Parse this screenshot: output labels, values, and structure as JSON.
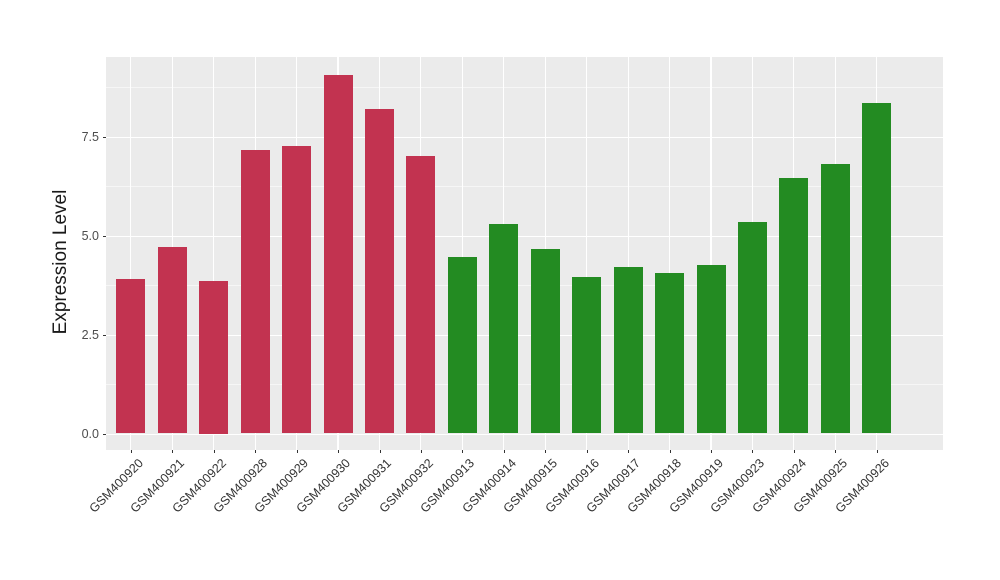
{
  "chart_data": {
    "type": "bar",
    "title": "",
    "xlabel": "",
    "ylabel": "Expression Level",
    "categories": [
      "GSM400920",
      "GSM400921",
      "GSM400922",
      "GSM400928",
      "GSM400929",
      "GSM400930",
      "GSM400931",
      "GSM400932",
      "GSM400913",
      "GSM400914",
      "GSM400915",
      "GSM400916",
      "GSM400917",
      "GSM400918",
      "GSM400919",
      "GSM400923",
      "GSM400924",
      "GSM400925",
      "GSM400926"
    ],
    "values": [
      3.9,
      4.7,
      3.85,
      7.15,
      7.25,
      9.05,
      8.2,
      7.0,
      4.45,
      5.3,
      4.65,
      3.95,
      4.2,
      4.05,
      4.25,
      5.35,
      6.45,
      6.8,
      8.35
    ],
    "bar_groups": [
      "red",
      "red",
      "red",
      "red",
      "red",
      "red",
      "red",
      "red",
      "green",
      "green",
      "green",
      "green",
      "green",
      "green",
      "green",
      "green",
      "green",
      "green",
      "green"
    ],
    "group_colors": {
      "red": "#C23350",
      "green": "#238B22"
    },
    "ylim": [
      0,
      9.5
    ],
    "yticks": [
      0,
      2.5,
      5,
      7.5
    ],
    "ytick_labels": [
      "0.0",
      "2.5",
      "5.0",
      "7.5"
    ],
    "minor_gridlines": [
      1.25,
      3.75,
      6.25,
      8.75
    ],
    "grid": true,
    "legend": false,
    "bar_width_fraction": 0.71
  },
  "style": {
    "panel_background": "#EBEBEB",
    "gridline_color": "#FFFFFF",
    "figure_background": "#FFFFFF",
    "tick_color": "#333333",
    "axis_text_color": "#4D4D4D"
  }
}
